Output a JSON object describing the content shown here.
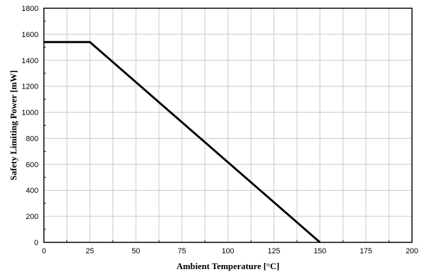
{
  "chart_data": {
    "type": "line",
    "xlabel": "Ambient Temperature [°C]",
    "ylabel": "Safety Limiting Power [mW]",
    "xlim": [
      0,
      200
    ],
    "ylim": [
      0,
      1800
    ],
    "xticks": [
      0,
      25,
      50,
      75,
      100,
      125,
      150,
      175,
      200
    ],
    "yticks": [
      0,
      200,
      400,
      600,
      800,
      1000,
      1200,
      1400,
      1600,
      1800
    ],
    "grid": true,
    "series": [
      {
        "x": [
          0,
          25,
          150
        ],
        "y": [
          1540,
          1540,
          0
        ],
        "color": "#000000"
      }
    ]
  }
}
